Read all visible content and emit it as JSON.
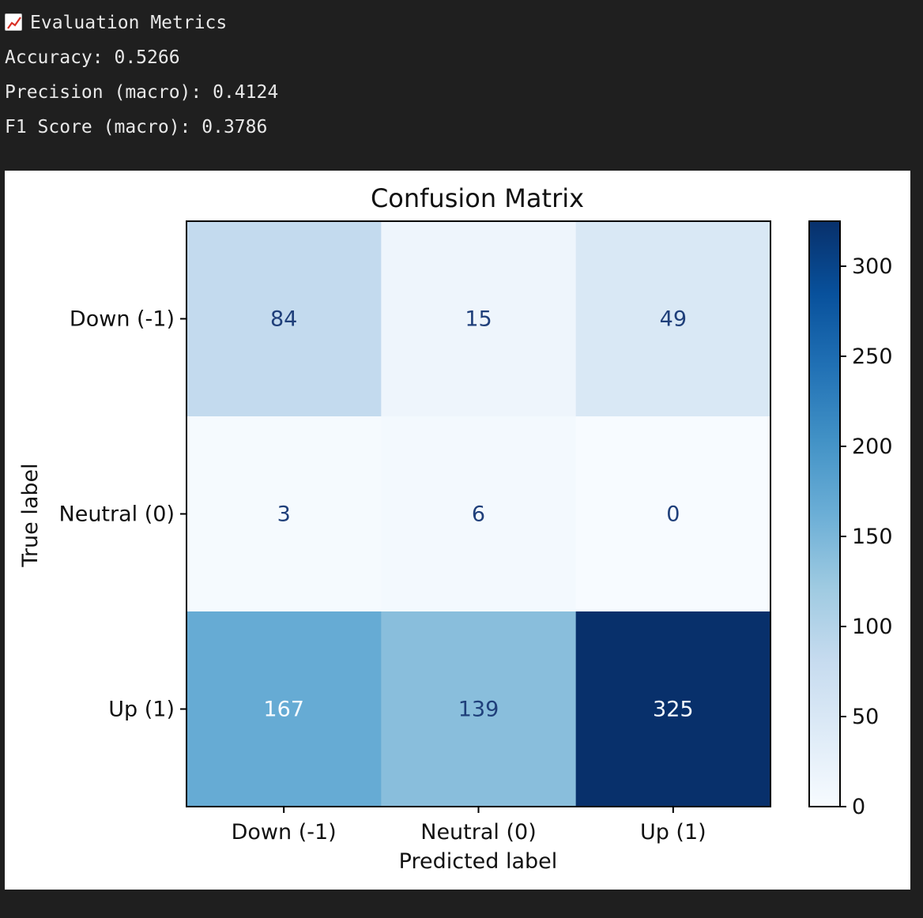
{
  "output": {
    "heading_icon": "chart-increasing-icon",
    "heading": "Evaluation Metrics",
    "accuracy": "Accuracy: 0.5266",
    "precision": "Precision (macro): 0.4124",
    "f1": "F1 Score (macro): 0.3786"
  },
  "chart_data": {
    "type": "heatmap",
    "title": "Confusion Matrix",
    "xlabel": "Predicted label",
    "ylabel": "True label",
    "x_categories": [
      "Down (-1)",
      "Neutral (0)",
      "Up (1)"
    ],
    "y_categories": [
      "Down (-1)",
      "Neutral (0)",
      "Up (1)"
    ],
    "values": [
      [
        84,
        15,
        49
      ],
      [
        3,
        6,
        0
      ],
      [
        167,
        139,
        325
      ]
    ],
    "colormap": "Blues",
    "colorbar": {
      "ticks": [
        0,
        50,
        100,
        150,
        200,
        250,
        300
      ],
      "range": [
        0,
        325
      ]
    },
    "grid": false
  }
}
